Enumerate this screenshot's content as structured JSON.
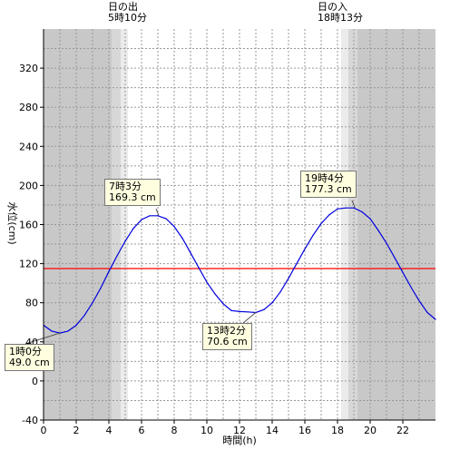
{
  "chart_data": {
    "type": "line",
    "xlabel": "時間(h)",
    "ylabel": "水位(cm)",
    "xlim": [
      0,
      24
    ],
    "ylim": [
      -40,
      360
    ],
    "x_ticks": [
      0,
      2,
      4,
      6,
      8,
      10,
      12,
      14,
      16,
      18,
      20,
      22
    ],
    "y_ticks": [
      -40,
      0,
      40,
      80,
      120,
      160,
      200,
      240,
      280,
      320
    ],
    "grid": true,
    "reference_line": {
      "value": 115,
      "color": "#ff0000"
    },
    "sunrise": {
      "time": 5.1667,
      "title": "日の出",
      "label": "5時10分"
    },
    "sunset": {
      "time": 18.2167,
      "title": "日の入",
      "label": "18時13分"
    },
    "series": [
      {
        "color": "#0000dd",
        "x": [
          0,
          0.5,
          1,
          1.5,
          2,
          2.5,
          3,
          3.5,
          4,
          4.5,
          5,
          5.5,
          6,
          6.5,
          7,
          7.5,
          8,
          8.5,
          9,
          9.5,
          10,
          10.5,
          11,
          11.5,
          12,
          12.5,
          13,
          13.5,
          14,
          14.5,
          15,
          15.5,
          16,
          16.5,
          17,
          17.5,
          18,
          18.5,
          19,
          19.5,
          20,
          20.5,
          21,
          21.5,
          22,
          22.5,
          23,
          23.5,
          24
        ],
        "values": [
          57,
          51,
          49,
          51,
          57,
          67,
          80,
          95,
          112,
          128,
          143,
          156,
          165,
          169,
          169,
          166,
          158,
          146,
          131,
          116,
          101,
          89,
          79,
          72,
          71,
          70.6,
          70,
          73,
          80,
          91,
          105,
          120,
          135,
          149,
          161,
          170,
          176,
          177,
          177,
          173,
          166,
          154,
          141,
          126,
          111,
          96,
          82,
          70,
          63
        ]
      }
    ],
    "annotations": [
      {
        "label": "1時0分",
        "value": "49.0 cm",
        "x": 1.0,
        "y": 49.0
      },
      {
        "label": "7時3分",
        "value": "169.3 cm",
        "x": 7.05,
        "y": 169.3
      },
      {
        "label": "13時2分",
        "value": "70.6 cm",
        "x": 13.03,
        "y": 70.6
      },
      {
        "label": "19時4分",
        "value": "177.3 cm",
        "x": 19.07,
        "y": 177.3
      }
    ]
  }
}
